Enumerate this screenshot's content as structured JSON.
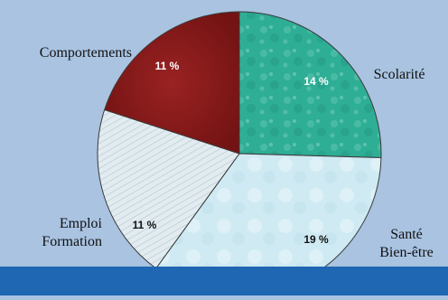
{
  "chart_data": {
    "type": "pie",
    "slices": [
      {
        "label_lines": [
          "Scolarité"
        ],
        "display": "14 %",
        "value": 14,
        "color": "#2fae96",
        "label_color": "#ffffff"
      },
      {
        "label_lines": [
          "Santé",
          "Bien-être"
        ],
        "display": "19 %",
        "value": 19,
        "color": "#cfeaf3",
        "label_color": "#111111"
      },
      {
        "label_lines": [
          "Emploi",
          "Formation"
        ],
        "display": "11 %",
        "value": 11,
        "color": "#e2ecf0",
        "label_color": "#111111"
      },
      {
        "label_lines": [
          "Comportements"
        ],
        "display": "11 %",
        "value": 11,
        "color": "#8b1a1a",
        "label_color": "#ffffff"
      }
    ]
  },
  "colors": {
    "background": "#a9c3e1",
    "bottom_band": "#1f66b3",
    "slice_border": "#3a3a3a"
  }
}
